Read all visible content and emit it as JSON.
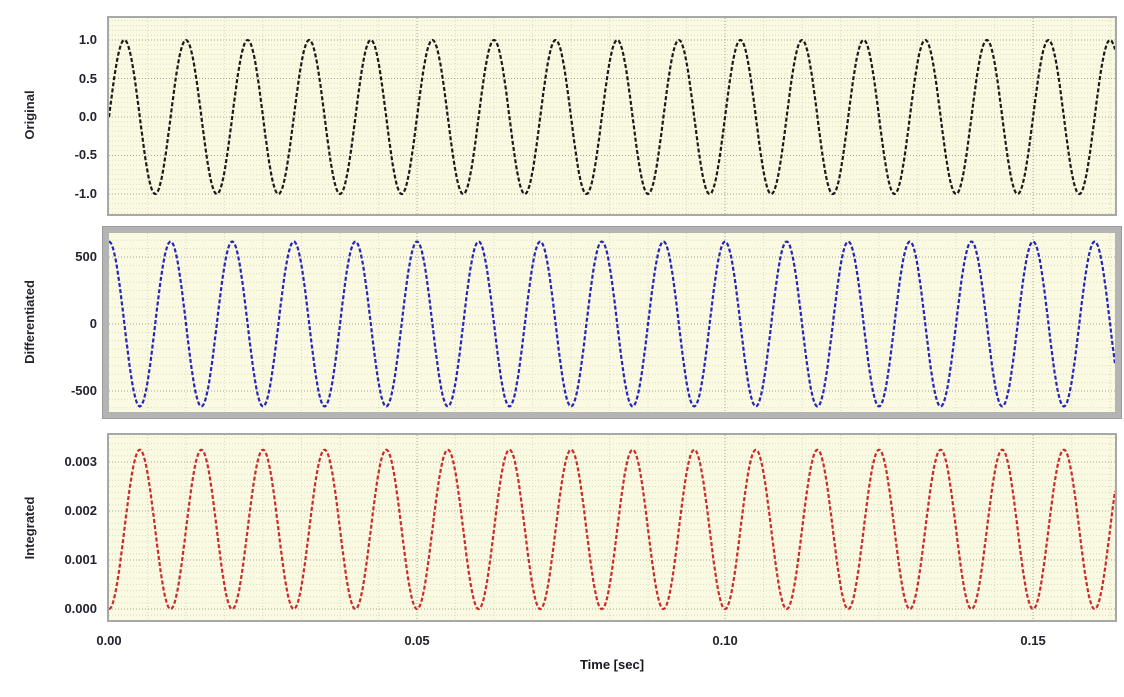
{
  "state": {
    "selected_panel": "Differentiated"
  },
  "style": {
    "figure_bg": "#ffffff",
    "plot_bg": "#fafae2",
    "grid_minor": "#dcdcc0",
    "grid_major": "#a6a698",
    "frame_color": "#a8a8a8",
    "selected_frame_color": "#b4b4b4",
    "text_color": "#23232f"
  },
  "xaxis": {
    "label": "Time [sec]",
    "range": [
      0,
      0.1633
    ],
    "tick_step": 0.05,
    "minor_step": 0.00625,
    "ticks": [
      {
        "label": "0.00",
        "value": 0.0
      },
      {
        "label": "0.05",
        "value": 0.05
      },
      {
        "label": "0.10",
        "value": 0.1
      },
      {
        "label": "0.15",
        "value": 0.15
      }
    ]
  },
  "chart_data": [
    {
      "type": "line",
      "panel": "Original",
      "ylabel": "Original",
      "line_color": "#1a1a1a",
      "ylim": [
        -1.26,
        1.286
      ],
      "ytick_step": 0.5,
      "yticks": [
        {
          "label": "1.0",
          "value": 1.0
        },
        {
          "label": "0.5",
          "value": 0.5
        },
        {
          "label": "0.0",
          "value": 0.0
        },
        {
          "label": "-0.5",
          "value": -0.5
        },
        {
          "label": "-1.0",
          "value": -1.0
        }
      ],
      "signal": {
        "description": "sin(2*pi*100*t)",
        "waveform": "sin",
        "sign": 1,
        "base": 0,
        "amplitude": 1.0,
        "frequency_hz": 100
      }
    },
    {
      "type": "line",
      "panel": "Differentiated",
      "ylabel": "Differentiated",
      "line_color": "#2525bb",
      "ylim": [
        -657,
        679
      ],
      "ytick_step": 500,
      "yticks": [
        {
          "label": "500",
          "value": 500
        },
        {
          "label": "0",
          "value": 0
        },
        {
          "label": "-500",
          "value": -500
        }
      ],
      "signal": {
        "description": "d/dt sin(2*pi*100*t) = 2*pi*100*cos(2*pi*100*t)",
        "waveform": "cos",
        "sign": 1,
        "base": 0,
        "amplitude": 615,
        "frequency_hz": 100
      }
    },
    {
      "type": "line",
      "panel": "Integrated",
      "ylabel": "Integrated",
      "line_color": "#cc2b2b",
      "ylim": [
        -0.000224,
        0.003551
      ],
      "ytick_step": 0.001,
      "yticks": [
        {
          "label": "0.003",
          "value": 0.003
        },
        {
          "label": "0.002",
          "value": 0.002
        },
        {
          "label": "0.001",
          "value": 0.001
        },
        {
          "label": "0.000",
          "value": 0.0
        }
      ],
      "signal": {
        "description": "integral of sin(2*pi*100*t) = (1-cos(2*pi*100*t))/(2*pi*100)",
        "waveform": "cos",
        "sign": -1,
        "base": 0.001625,
        "amplitude": 0.001625,
        "frequency_hz": 100
      }
    }
  ]
}
